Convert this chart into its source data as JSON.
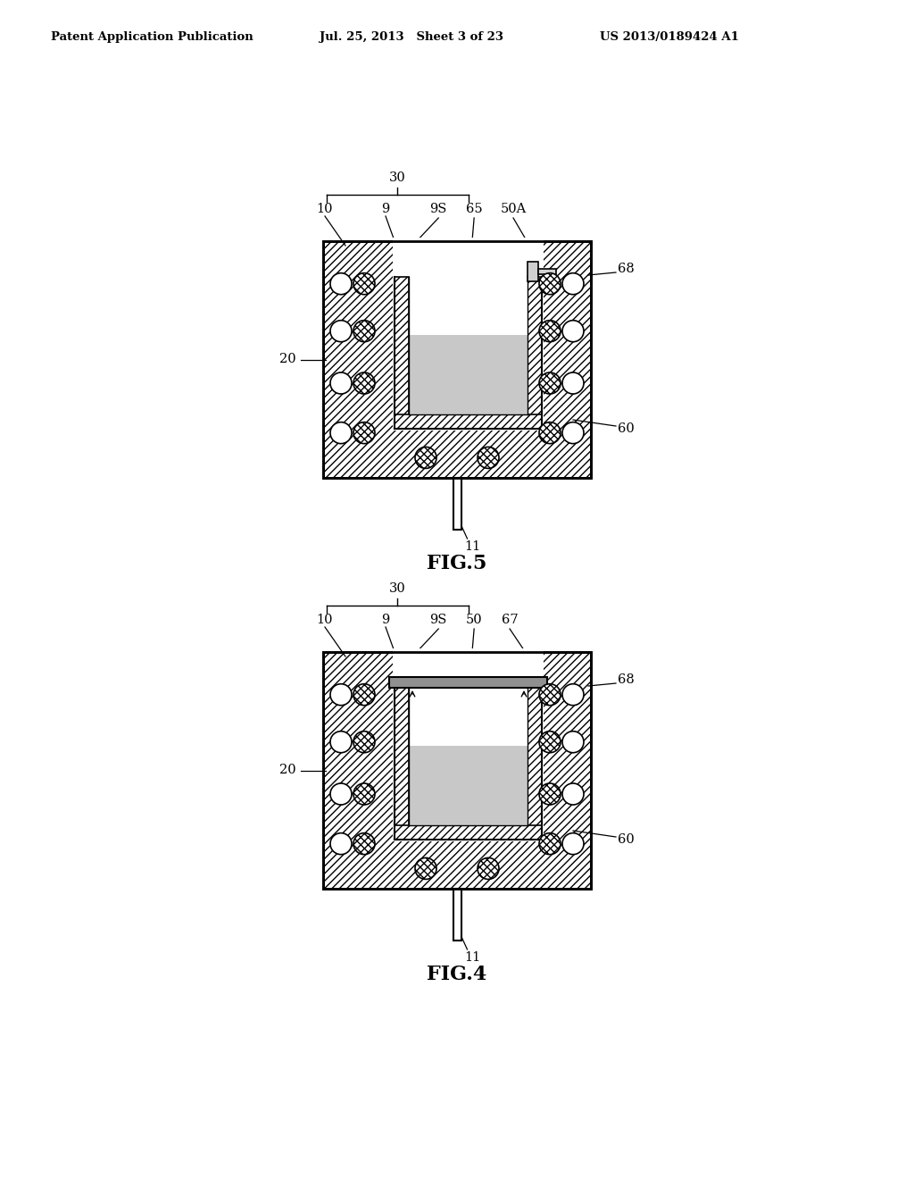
{
  "bg_color": "#ffffff",
  "header_left": "Patent Application Publication",
  "header_mid": "Jul. 25, 2013   Sheet 3 of 23",
  "header_right": "US 2013/0189424 A1",
  "fig4_label": "FIG.4",
  "fig5_label": "FIG.5"
}
